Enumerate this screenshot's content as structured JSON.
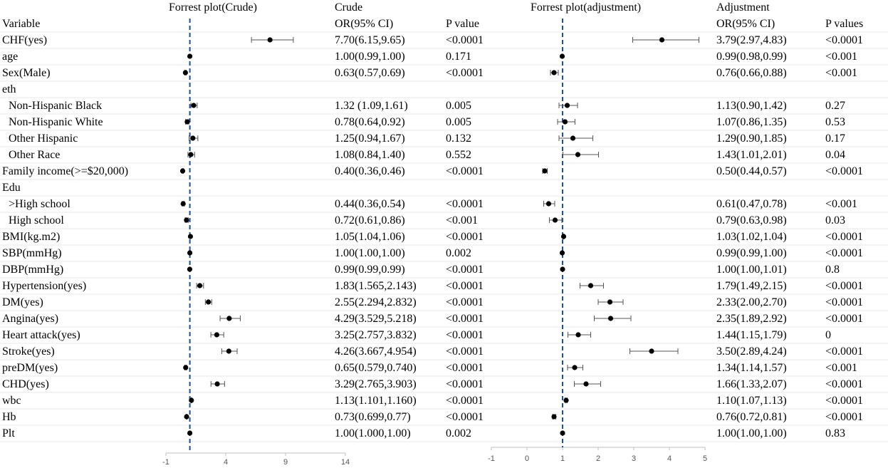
{
  "header": {
    "title_crude_plot": "Forrest plot(Crude)",
    "title_crude": "Crude",
    "title_adj_plot": "Forrest plot(adjustment)",
    "title_adj": "Adjustment",
    "col_variable": "Variable",
    "col_or_crude": "OR(95% CI)",
    "col_p_crude": "P value",
    "col_or_adj": "OR(95% CI)",
    "col_p_adj": "P values"
  },
  "rows": [
    {
      "label": "CHF(yes)",
      "indent": false,
      "or_crude": "7.70(6.15,9.65)",
      "p_crude": "<0.0001",
      "or_adj": "3.79(2.97,4.83)",
      "p_adj": "<0.0001"
    },
    {
      "label": "age",
      "indent": false,
      "or_crude": "1.00(0.99,1.00)",
      "p_crude": "0.171",
      "or_adj": "0.99(0.98,0.99)",
      "p_adj": "<0.001"
    },
    {
      "label": "Sex(Male)",
      "indent": false,
      "or_crude": "0.63(0.57,0.69)",
      "p_crude": "<0.0001",
      "or_adj": "0.76(0.66,0.88)",
      "p_adj": "<0.001"
    },
    {
      "label": "eth",
      "indent": false,
      "or_crude": "",
      "p_crude": "",
      "or_adj": "",
      "p_adj": ""
    },
    {
      "label": "Non-Hispanic Black",
      "indent": true,
      "or_crude": "1.32 (1.09,1.61)",
      "p_crude": "0.005",
      "or_adj": "1.13(0.90,1.42)",
      "p_adj": "0.27"
    },
    {
      "label": "Non-Hispanic White",
      "indent": true,
      "or_crude": "0.78(0.64,0.92)",
      "p_crude": "0.005",
      "or_adj": "1.07(0.86,1.35)",
      "p_adj": "0.53"
    },
    {
      "label": "Other Hispanic",
      "indent": true,
      "or_crude": "1.25(0.94,1.67)",
      "p_crude": "0.132",
      "or_adj": "1.29(0.90,1.85)",
      "p_adj": "0.17"
    },
    {
      "label": "Other Race",
      "indent": true,
      "or_crude": "1.08(0.84,1.40)",
      "p_crude": "0.552",
      "or_adj": "1.43(1.01,2.01)",
      "p_adj": "0.04"
    },
    {
      "label": "Family income(>=$20,000)",
      "indent": false,
      "or_crude": "0.40(0.36,0.46)",
      "p_crude": "<0.0001",
      "or_adj": "0.50(0.44,0.57)",
      "p_adj": "<0.0001"
    },
    {
      "label": "Edu",
      "indent": false,
      "or_crude": "",
      "p_crude": "",
      "or_adj": "",
      "p_adj": ""
    },
    {
      "label": ">High school",
      "indent": true,
      "or_crude": "0.44(0.36,0.54)",
      "p_crude": "<0.0001",
      "or_adj": "0.61(0.47,0.78)",
      "p_adj": "<0.001"
    },
    {
      "label": "High school",
      "indent": true,
      "or_crude": "0.72(0.61,0.86)",
      "p_crude": "<0.001",
      "or_adj": "0.79(0.63,0.98)",
      "p_adj": "0.03"
    },
    {
      "label": "BMI(kg.m2)",
      "indent": false,
      "or_crude": "1.05(1.04,1.06)",
      "p_crude": "<0.0001",
      "or_adj": "1.03(1.02,1.04)",
      "p_adj": "<0.0001"
    },
    {
      "label": "SBP(mmHg)",
      "indent": false,
      "or_crude": "1.00(1.00,1.00)",
      "p_crude": "0.002",
      "or_adj": "0.99(0.99,1.00)",
      "p_adj": "<0.0001"
    },
    {
      "label": "DBP(mmHg)",
      "indent": false,
      "or_crude": "0.99(0.99,0.99)",
      "p_crude": "<0.0001",
      "or_adj": "1.00(1.00,1.01)",
      "p_adj": "0.8"
    },
    {
      "label": "Hypertension(yes)",
      "indent": false,
      "or_crude": "1.83(1.565,2.143)",
      "p_crude": "<0.0001",
      "or_adj": "1.79(1.49,2.15)",
      "p_adj": "<0.0001"
    },
    {
      "label": "DM(yes)",
      "indent": false,
      "or_crude": "2.55(2.294,2.832)",
      "p_crude": "<0.0001",
      "or_adj": "2.33(2.00,2.70)",
      "p_adj": "<0.0001"
    },
    {
      "label": "Angina(yes)",
      "indent": false,
      "or_crude": "4.29(3.529,5.218)",
      "p_crude": "<0.0001",
      "or_adj": "2.35(1.89,2.92)",
      "p_adj": "<0.0001"
    },
    {
      "label": "Heart attack(yes)",
      "indent": false,
      "or_crude": "3.25(2.757,3.832)",
      "p_crude": "<0.0001",
      "or_adj": "1.44(1.15,1.79)",
      "p_adj": "0"
    },
    {
      "label": "Stroke(yes)",
      "indent": false,
      "or_crude": "4.26(3.667,4.954)",
      "p_crude": "<0.0001",
      "or_adj": "3.50(2.89,4.24)",
      "p_adj": "<0.0001"
    },
    {
      "label": "preDM(yes)",
      "indent": false,
      "or_crude": "0.65(0.579,0.740)",
      "p_crude": "<0.0001",
      "or_adj": "1.34(1.14,1.57)",
      "p_adj": "<0.001"
    },
    {
      "label": "CHD(yes)",
      "indent": false,
      "or_crude": "3.29(2.765,3.903)",
      "p_crude": "<0.0001",
      "or_adj": "1.66(1.33,2.07)",
      "p_adj": "<0.0001"
    },
    {
      "label": "wbc",
      "indent": false,
      "or_crude": "1.13(1.101,1.160)",
      "p_crude": "<0.0001",
      "or_adj": "1.10(1.07,1.13)",
      "p_adj": "<0.0001"
    },
    {
      "label": "Hb",
      "indent": false,
      "or_crude": "0.73(0.699,0.77)",
      "p_crude": "<0.0001",
      "or_adj": "0.76(0.72,0.81)",
      "p_adj": "<0.0001"
    },
    {
      "label": "Plt",
      "indent": false,
      "or_crude": "1.00(1.000,1.00)",
      "p_crude": "0.002",
      "or_adj": "1.00(1.00,1.00)",
      "p_adj": "0.83"
    }
  ],
  "chart_data": [
    {
      "type": "forest",
      "title": "Forrest plot(Crude)",
      "x_ticks": [
        "-1",
        "4",
        "9",
        "14"
      ],
      "xlim": [
        -1,
        14
      ],
      "reference_line": 1,
      "series": [
        {
          "label": "CHF(yes)",
          "or": 7.7,
          "lo": 6.15,
          "hi": 9.65
        },
        {
          "label": "age",
          "or": 1.0,
          "lo": 0.99,
          "hi": 1.0
        },
        {
          "label": "Sex(Male)",
          "or": 0.63,
          "lo": 0.57,
          "hi": 0.69
        },
        null,
        {
          "label": "Non-Hispanic Black",
          "or": 1.32,
          "lo": 1.09,
          "hi": 1.61
        },
        {
          "label": "Non-Hispanic White",
          "or": 0.78,
          "lo": 0.64,
          "hi": 0.92
        },
        {
          "label": "Other Hispanic",
          "or": 1.25,
          "lo": 0.94,
          "hi": 1.67
        },
        {
          "label": "Other Race",
          "or": 1.08,
          "lo": 0.84,
          "hi": 1.4
        },
        {
          "label": "Family income(>=$20,000)",
          "or": 0.4,
          "lo": 0.36,
          "hi": 0.46
        },
        null,
        {
          "label": ">High school",
          "or": 0.44,
          "lo": 0.36,
          "hi": 0.54
        },
        {
          "label": "High school",
          "or": 0.72,
          "lo": 0.61,
          "hi": 0.86
        },
        {
          "label": "BMI(kg.m2)",
          "or": 1.05,
          "lo": 1.04,
          "hi": 1.06
        },
        {
          "label": "SBP(mmHg)",
          "or": 1.0,
          "lo": 1.0,
          "hi": 1.0
        },
        {
          "label": "DBP(mmHg)",
          "or": 0.99,
          "lo": 0.99,
          "hi": 0.99
        },
        {
          "label": "Hypertension(yes)",
          "or": 1.83,
          "lo": 1.565,
          "hi": 2.143
        },
        {
          "label": "DM(yes)",
          "or": 2.55,
          "lo": 2.294,
          "hi": 2.832
        },
        {
          "label": "Angina(yes)",
          "or": 4.29,
          "lo": 3.529,
          "hi": 5.218
        },
        {
          "label": "Heart attack(yes)",
          "or": 3.25,
          "lo": 2.757,
          "hi": 3.832
        },
        {
          "label": "Stroke(yes)",
          "or": 4.26,
          "lo": 3.667,
          "hi": 4.954
        },
        {
          "label": "preDM(yes)",
          "or": 0.65,
          "lo": 0.579,
          "hi": 0.74
        },
        {
          "label": "CHD(yes)",
          "or": 3.29,
          "lo": 2.765,
          "hi": 3.903
        },
        {
          "label": "wbc",
          "or": 1.13,
          "lo": 1.101,
          "hi": 1.16
        },
        {
          "label": "Hb",
          "or": 0.73,
          "lo": 0.699,
          "hi": 0.77
        },
        {
          "label": "Plt",
          "or": 1.0,
          "lo": 1.0,
          "hi": 1.0
        }
      ]
    },
    {
      "type": "forest",
      "title": "Forrest plot(adjustment)",
      "x_ticks": [
        "-1",
        "0",
        "1",
        "2",
        "3",
        "4",
        "5"
      ],
      "xlim": [
        -1,
        5
      ],
      "reference_line": 1,
      "series": [
        {
          "label": "CHF(yes)",
          "or": 3.79,
          "lo": 2.97,
          "hi": 4.83
        },
        {
          "label": "age",
          "or": 0.99,
          "lo": 0.98,
          "hi": 0.99
        },
        {
          "label": "Sex(Male)",
          "or": 0.76,
          "lo": 0.66,
          "hi": 0.88
        },
        null,
        {
          "label": "Non-Hispanic Black",
          "or": 1.13,
          "lo": 0.9,
          "hi": 1.42
        },
        {
          "label": "Non-Hispanic White",
          "or": 1.07,
          "lo": 0.86,
          "hi": 1.35
        },
        {
          "label": "Other Hispanic",
          "or": 1.29,
          "lo": 0.9,
          "hi": 1.85
        },
        {
          "label": "Other Race",
          "or": 1.43,
          "lo": 1.01,
          "hi": 2.01
        },
        {
          "label": "Family income(>=$20,000)",
          "or": 0.5,
          "lo": 0.44,
          "hi": 0.57
        },
        null,
        {
          "label": ">High school",
          "or": 0.61,
          "lo": 0.47,
          "hi": 0.78
        },
        {
          "label": "High school",
          "or": 0.79,
          "lo": 0.63,
          "hi": 0.98
        },
        {
          "label": "BMI(kg.m2)",
          "or": 1.03,
          "lo": 1.02,
          "hi": 1.04
        },
        {
          "label": "SBP(mmHg)",
          "or": 0.99,
          "lo": 0.99,
          "hi": 1.0
        },
        {
          "label": "DBP(mmHg)",
          "or": 1.0,
          "lo": 1.0,
          "hi": 1.01
        },
        {
          "label": "Hypertension(yes)",
          "or": 1.79,
          "lo": 1.49,
          "hi": 2.15
        },
        {
          "label": "DM(yes)",
          "or": 2.33,
          "lo": 2.0,
          "hi": 2.7
        },
        {
          "label": "Angina(yes)",
          "or": 2.35,
          "lo": 1.89,
          "hi": 2.92
        },
        {
          "label": "Heart attack(yes)",
          "or": 1.44,
          "lo": 1.15,
          "hi": 1.79
        },
        {
          "label": "Stroke(yes)",
          "or": 3.5,
          "lo": 2.89,
          "hi": 4.24
        },
        {
          "label": "preDM(yes)",
          "or": 1.34,
          "lo": 1.14,
          "hi": 1.57
        },
        {
          "label": "CHD(yes)",
          "or": 1.66,
          "lo": 1.33,
          "hi": 2.07
        },
        {
          "label": "wbc",
          "or": 1.1,
          "lo": 1.07,
          "hi": 1.13
        },
        {
          "label": "Hb",
          "or": 0.76,
          "lo": 0.72,
          "hi": 0.81
        },
        {
          "label": "Plt",
          "or": 1.0,
          "lo": 1.0,
          "hi": 1.0
        }
      ]
    }
  ]
}
